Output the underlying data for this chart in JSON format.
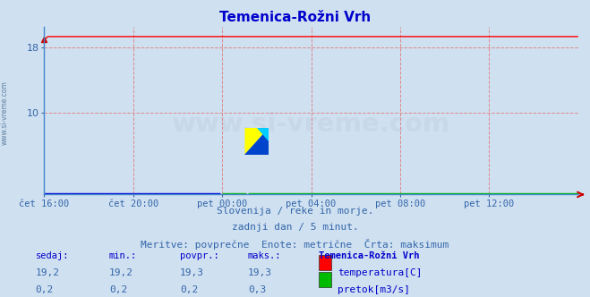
{
  "title": "Temenica-Rožni Vrh",
  "bg_color": "#cfe0f0",
  "plot_bg_color": "#cfe0f0",
  "fig_bg_color": "#cfe0f0",
  "grid_color_major": "#e08080",
  "grid_color_minor": "#e8b0b0",
  "x_tick_labels": [
    "čet 16:00",
    "čet 20:00",
    "pet 00:00",
    "pet 04:00",
    "pet 08:00",
    "pet 12:00"
  ],
  "x_tick_positions": [
    0,
    48,
    96,
    144,
    192,
    240
  ],
  "n_points": 289,
  "ylim": [
    0,
    20.5
  ],
  "yticks": [
    10,
    18
  ],
  "temp_value": 19.3,
  "flow_value": 0.2,
  "temp_color": "#ff0000",
  "flow_color": "#00bb00",
  "flow_line_color": "#0000dd",
  "spine_color": "#4488cc",
  "subtitle_line1": "Slovenija / reke in morje.",
  "subtitle_line2": "zadnji dan / 5 minut.",
  "subtitle_line3": "Meritve: povprečne  Enote: metrične  Črta: maksimum",
  "table_header": [
    "sedaj:",
    "min.:",
    "povpr.:",
    "maks.:",
    "Temenica-Rožni Vrh"
  ],
  "table_row1": [
    "19,2",
    "19,2",
    "19,3",
    "19,3"
  ],
  "table_row2": [
    "0,2",
    "0,2",
    "0,2",
    "0,3"
  ],
  "label_temp": "temperatura[C]",
  "label_flow": "pretok[m3/s]",
  "watermark": "www.si-vreme.com",
  "watermark_color": "#c8d8e8",
  "side_label": "www.si-vreme.com",
  "title_color": "#0000cc",
  "tick_color": "#3366aa",
  "subtitle_color": "#3366aa",
  "table_header_color": "#0000cc",
  "table_value_color": "#3366aa",
  "axis_left_color": "#4488cc",
  "arrow_color": "#cc0000"
}
